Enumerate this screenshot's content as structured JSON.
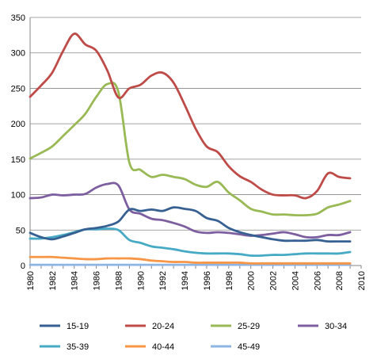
{
  "chart_data": {
    "type": "line",
    "title": "",
    "xlabel": "",
    "ylabel": "",
    "xlim": [
      1980,
      2010
    ],
    "ylim": [
      0,
      350
    ],
    "x_ticks": [
      "1980",
      "1982",
      "1984",
      "1986",
      "1988",
      "1990",
      "1992",
      "1994",
      "1996",
      "1998",
      "2000",
      "2002",
      "2004",
      "2006",
      "2008",
      "2010"
    ],
    "y_ticks": [
      "0",
      "50",
      "100",
      "150",
      "200",
      "250",
      "300",
      "350"
    ],
    "grid": "horizontal",
    "legend_position": "bottom",
    "x": [
      1980,
      1981,
      1982,
      1983,
      1984,
      1985,
      1986,
      1987,
      1988,
      1989,
      1990,
      1991,
      1992,
      1993,
      1994,
      1995,
      1996,
      1997,
      1998,
      1999,
      2000,
      2001,
      2002,
      2003,
      2004,
      2005,
      2006,
      2007,
      2008,
      2009
    ],
    "series": [
      {
        "name": "15-19",
        "color": "#376092",
        "values": [
          46,
          40,
          37,
          41,
          46,
          51,
          53,
          56,
          62,
          79,
          77,
          79,
          77,
          82,
          80,
          77,
          67,
          63,
          53,
          47,
          43,
          40,
          37,
          35,
          35,
          35,
          36,
          34,
          34,
          34
        ]
      },
      {
        "name": "20-24",
        "color": "#be4b48",
        "values": [
          238,
          254,
          272,
          303,
          327,
          312,
          303,
          275,
          237,
          250,
          255,
          268,
          272,
          258,
          227,
          193,
          168,
          160,
          140,
          126,
          118,
          107,
          100,
          99,
          99,
          95,
          105,
          130,
          125,
          123
        ]
      },
      {
        "name": "25-29",
        "color": "#98b954",
        "values": [
          151,
          159,
          168,
          183,
          198,
          214,
          238,
          256,
          245,
          145,
          135,
          125,
          128,
          125,
          122,
          114,
          111,
          118,
          103,
          92,
          80,
          76,
          72,
          72,
          71,
          71,
          73,
          82,
          86,
          91
        ]
      },
      {
        "name": "30-34",
        "color": "#7d5fa0",
        "values": [
          95,
          96,
          100,
          99,
          100,
          101,
          110,
          115,
          113,
          79,
          73,
          66,
          64,
          60,
          55,
          48,
          46,
          47,
          46,
          44,
          42,
          43,
          45,
          47,
          44,
          40,
          40,
          43,
          43,
          47
        ]
      },
      {
        "name": "35-39",
        "color": "#46aac5",
        "values": [
          38,
          38,
          40,
          43,
          47,
          51,
          51,
          52,
          50,
          36,
          32,
          27,
          25,
          23,
          20,
          18,
          17,
          17,
          17,
          16,
          14,
          14,
          15,
          15,
          16,
          17,
          17,
          17,
          17,
          19
        ]
      },
      {
        "name": "40-44",
        "color": "#f79646",
        "values": [
          12,
          12,
          12,
          11,
          10,
          9,
          9,
          10,
          10,
          10,
          9,
          7,
          6,
          5,
          5,
          4,
          4,
          4,
          4,
          4,
          3,
          3,
          3,
          3,
          3,
          3,
          3,
          3,
          3,
          3
        ]
      },
      {
        "name": "45-49",
        "color": "#8eb4e3",
        "values": [
          1,
          1,
          1,
          1,
          1,
          1,
          1,
          1,
          1,
          1,
          1,
          1,
          1,
          1,
          1,
          1,
          1,
          1,
          1,
          1,
          1,
          1,
          1,
          1,
          1,
          1,
          1,
          1,
          1,
          1
        ]
      }
    ]
  }
}
